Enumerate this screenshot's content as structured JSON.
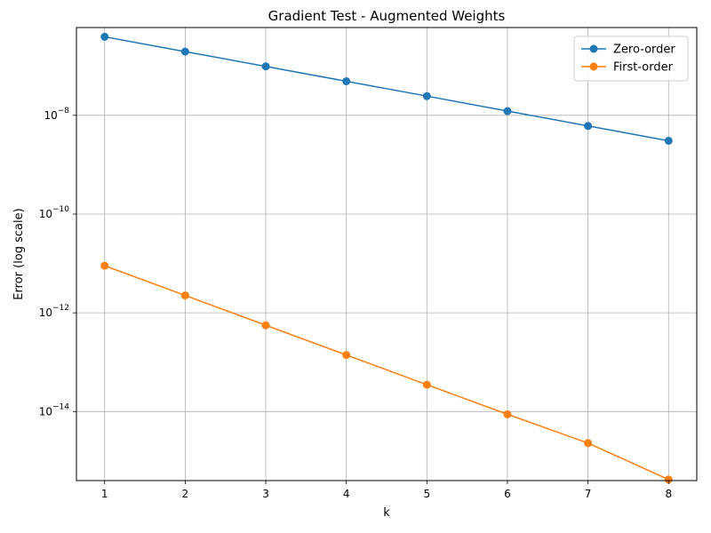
{
  "chart_data": {
    "type": "line",
    "title": "Gradient Test - Augmented Weights",
    "xlabel": "k",
    "ylabel": "Error (log scale)",
    "x": [
      1,
      2,
      3,
      4,
      5,
      6,
      7,
      8
    ],
    "x_ticks": [
      1,
      2,
      3,
      4,
      5,
      6,
      7,
      8
    ],
    "xlim": [
      0.65,
      8.35
    ],
    "yscale": "log",
    "ylim": [
      4e-16,
      6e-07
    ],
    "y_ticks": [
      {
        "value": 1e-08,
        "base": "10",
        "exp": "−8"
      },
      {
        "value": 1e-10,
        "base": "10",
        "exp": "−10"
      },
      {
        "value": 1e-12,
        "base": "10",
        "exp": "−12"
      },
      {
        "value": 1e-14,
        "base": "10",
        "exp": "−14"
      }
    ],
    "grid": true,
    "legend_position": "top-right",
    "series": [
      {
        "name": "Zero-order",
        "color": "#1f77b4",
        "values": [
          3.9e-07,
          1.95e-07,
          9.8e-08,
          4.9e-08,
          2.45e-08,
          1.22e-08,
          6.1e-09,
          3.05e-09
        ]
      },
      {
        "name": "First-order",
        "color": "#ff7f0e",
        "values": [
          9e-12,
          2.25e-12,
          5.6e-13,
          1.4e-13,
          3.5e-14,
          8.8e-15,
          2.3e-15,
          4.2e-16
        ]
      }
    ]
  }
}
